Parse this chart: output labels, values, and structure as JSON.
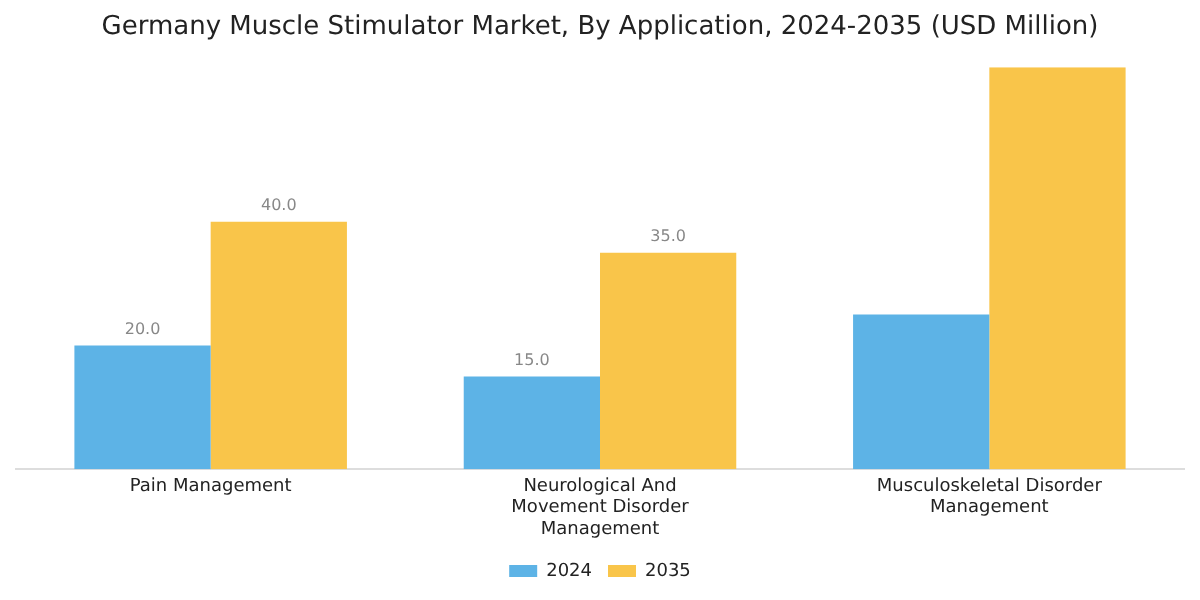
{
  "chart_data": {
    "type": "bar",
    "title": "Germany Muscle Stimulator Market, By Application, 2024-2035 (USD Million)",
    "categories": [
      "Pain Management",
      "Neurological And Movement Disorder Management",
      "Musculoskeletal Disorder Management"
    ],
    "series": [
      {
        "name": "2024",
        "color": "#5db3e6",
        "values": [
          20.0,
          15.0,
          25.0
        ],
        "value_labels": [
          "20.0",
          "15.0",
          null
        ]
      },
      {
        "name": "2035",
        "color": "#f9c54a",
        "values": [
          40.0,
          35.0,
          65.0
        ],
        "value_labels": [
          "40.0",
          "35.0",
          null
        ]
      }
    ],
    "ylim": [
      0,
      65
    ],
    "tick_labels": "x",
    "legend": "bottom",
    "grid": false
  }
}
